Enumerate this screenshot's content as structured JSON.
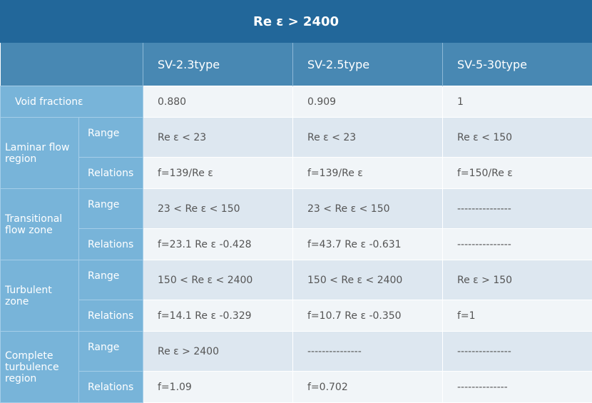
{
  "title": "Re ε > 2400",
  "columns": [
    "SV-2.3type",
    "SV-2.5type",
    "SV-5-30type"
  ],
  "void_fraction": {
    "label": "Void fractionε",
    "values": [
      "0.880",
      "0.909",
      "1"
    ]
  },
  "groups": [
    {
      "label": "Laminar flow region",
      "range": {
        "label": "Range",
        "values": [
          "Re ε < 23",
          "Re ε < 23",
          "Re ε < 150"
        ]
      },
      "relations": {
        "label": "Relations",
        "values": [
          "f=139/Re ε",
          "f=139/Re ε",
          "f=150/Re ε"
        ]
      }
    },
    {
      "label": "Transitional flow zone",
      "range": {
        "label": "Range",
        "values": [
          "23 < Re ε < 150",
          "23 < Re ε < 150",
          "---------------"
        ]
      },
      "relations": {
        "label": "Relations",
        "values": [
          "f=23.1 Re ε -0.428",
          "f=43.7 Re ε -0.631",
          "---------------"
        ]
      }
    },
    {
      "label": "Turbulent zone",
      "range": {
        "label": "Range",
        "values": [
          "150 < Re ε < 2400",
          "150 < Re ε < 2400",
          "Re ε > 150"
        ]
      },
      "relations": {
        "label": "Relations",
        "values": [
          "f=14.1 Re ε -0.329",
          "f=10.7 Re ε -0.350",
          "f=1"
        ]
      }
    },
    {
      "label": "Complete turbulence region",
      "range": {
        "label": "Range",
        "values": [
          "Re ε > 2400",
          "---------------",
          "---------------"
        ]
      },
      "relations": {
        "label": "Relations",
        "values": [
          "f=1.09",
          "f=0.702",
          "--------------"
        ]
      }
    }
  ],
  "colors": {
    "title_bg": "#22679a",
    "header_bg": "#4888b3",
    "label_bg": "#78b4d9",
    "range_row_bg": "#dde7f0",
    "relations_row_bg": "#f1f5f8"
  }
}
